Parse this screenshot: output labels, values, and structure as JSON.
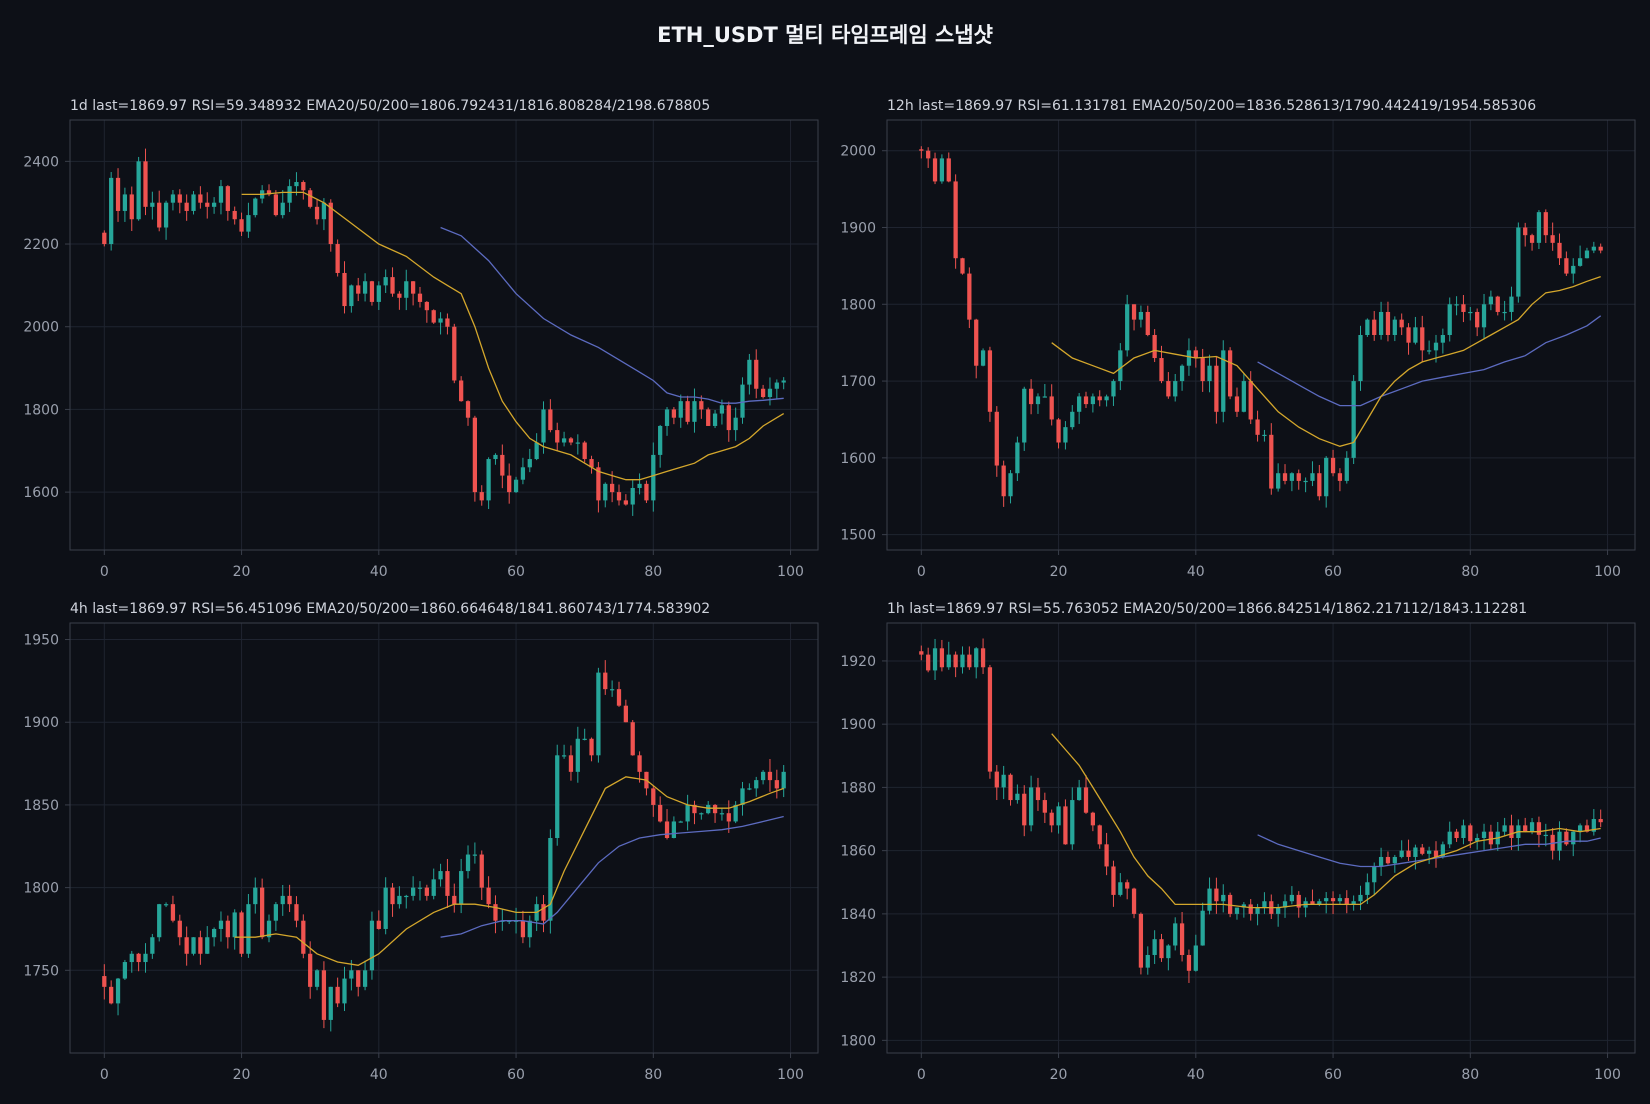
{
  "page": {
    "title": "ETH_USDT  멀티 타임프레임 스냅샷",
    "colors": {
      "background": "#0d1017",
      "frame": "#3a3f4b",
      "grid": "#1f2430",
      "tick_text": "#9aa0ad",
      "header_text": "#cfd3dc",
      "up": "#26a69a",
      "down": "#ef5350",
      "ema20": "#d4a72c",
      "ema50": "#5c6bc0"
    }
  },
  "chart_data": [
    {
      "type": "candlestick",
      "timeframe": "1d",
      "header": "1d  last=1869.97  RSI=59.348932  EMA20/50/200=1806.792431/1816.808284/2198.678805",
      "xlim": [
        -5,
        104
      ],
      "ylim": [
        1460,
        2500
      ],
      "xticks": [
        0,
        20,
        40,
        60,
        80,
        100
      ],
      "yticks": [
        1600,
        1800,
        2000,
        2200,
        2400
      ],
      "closes": [
        2200,
        2360,
        2280,
        2320,
        2260,
        2400,
        2290,
        2300,
        2240,
        2300,
        2320,
        2300,
        2280,
        2320,
        2300,
        2290,
        2300,
        2340,
        2280,
        2260,
        2230,
        2270,
        2310,
        2330,
        2320,
        2270,
        2300,
        2340,
        2350,
        2330,
        2290,
        2260,
        2300,
        2200,
        2130,
        2050,
        2100,
        2080,
        2110,
        2060,
        2100,
        2120,
        2080,
        2070,
        2110,
        2080,
        2060,
        2040,
        2010,
        2020,
        2000,
        1870,
        1820,
        1780,
        1600,
        1580,
        1680,
        1690,
        1640,
        1600,
        1630,
        1660,
        1680,
        1720,
        1800,
        1750,
        1720,
        1730,
        1720,
        1720,
        1680,
        1660,
        1580,
        1620,
        1600,
        1580,
        1570,
        1610,
        1620,
        1580,
        1690,
        1760,
        1800,
        1780,
        1820,
        1770,
        1820,
        1800,
        1760,
        1790,
        1810,
        1750,
        1780,
        1860,
        1920,
        1850,
        1830,
        1850,
        1865,
        1870
      ],
      "ema20": [
        [
          20,
          2320
        ],
        [
          23,
          2320
        ],
        [
          26,
          2325
        ],
        [
          29,
          2325
        ],
        [
          32,
          2300
        ],
        [
          36,
          2250
        ],
        [
          40,
          2200
        ],
        [
          44,
          2170
        ],
        [
          48,
          2120
        ],
        [
          50,
          2100
        ],
        [
          52,
          2080
        ],
        [
          54,
          2000
        ],
        [
          56,
          1900
        ],
        [
          58,
          1820
        ],
        [
          60,
          1770
        ],
        [
          62,
          1730
        ],
        [
          64,
          1710
        ],
        [
          66,
          1700
        ],
        [
          68,
          1690
        ],
        [
          70,
          1670
        ],
        [
          72,
          1650
        ],
        [
          74,
          1640
        ],
        [
          76,
          1630
        ],
        [
          78,
          1630
        ],
        [
          80,
          1640
        ],
        [
          82,
          1650
        ],
        [
          84,
          1660
        ],
        [
          86,
          1670
        ],
        [
          88,
          1690
        ],
        [
          90,
          1700
        ],
        [
          92,
          1710
        ],
        [
          94,
          1730
        ],
        [
          96,
          1760
        ],
        [
          98,
          1780
        ],
        [
          99,
          1790
        ]
      ],
      "ema50": [
        [
          49,
          2240
        ],
        [
          52,
          2220
        ],
        [
          56,
          2160
        ],
        [
          60,
          2080
        ],
        [
          64,
          2020
        ],
        [
          68,
          1980
        ],
        [
          72,
          1950
        ],
        [
          76,
          1910
        ],
        [
          78,
          1890
        ],
        [
          80,
          1870
        ],
        [
          82,
          1840
        ],
        [
          84,
          1830
        ],
        [
          86,
          1830
        ],
        [
          88,
          1825
        ],
        [
          90,
          1815
        ],
        [
          92,
          1815
        ],
        [
          94,
          1820
        ],
        [
          96,
          1822
        ],
        [
          99,
          1827
        ]
      ]
    },
    {
      "type": "candlestick",
      "timeframe": "12h",
      "header": "12h  last=1869.97  RSI=61.131781  EMA20/50/200=1836.528613/1790.442419/1954.585306",
      "xlim": [
        -5,
        104
      ],
      "ylim": [
        1480,
        2040
      ],
      "xticks": [
        0,
        20,
        40,
        60,
        80,
        100
      ],
      "yticks": [
        1500,
        1600,
        1700,
        1800,
        1900,
        2000
      ],
      "closes": [
        2000,
        1990,
        1960,
        1990,
        1960,
        1860,
        1840,
        1780,
        1720,
        1740,
        1660,
        1590,
        1550,
        1580,
        1620,
        1690,
        1670,
        1680,
        1680,
        1650,
        1620,
        1640,
        1660,
        1680,
        1670,
        1680,
        1675,
        1680,
        1700,
        1740,
        1800,
        1780,
        1790,
        1760,
        1730,
        1700,
        1680,
        1700,
        1720,
        1740,
        1730,
        1700,
        1720,
        1660,
        1740,
        1680,
        1660,
        1700,
        1650,
        1630,
        1630,
        1560,
        1580,
        1570,
        1580,
        1570,
        1570,
        1580,
        1550,
        1600,
        1580,
        1570,
        1600,
        1700,
        1760,
        1780,
        1760,
        1790,
        1760,
        1780,
        1770,
        1750,
        1770,
        1740,
        1740,
        1750,
        1760,
        1800,
        1800,
        1790,
        1790,
        1770,
        1800,
        1810,
        1790,
        1790,
        1810,
        1900,
        1890,
        1880,
        1920,
        1890,
        1880,
        1860,
        1840,
        1850,
        1860,
        1870,
        1875,
        1870
      ],
      "ema20": [
        [
          19,
          1750
        ],
        [
          22,
          1730
        ],
        [
          25,
          1720
        ],
        [
          28,
          1710
        ],
        [
          31,
          1730
        ],
        [
          34,
          1740
        ],
        [
          37,
          1735
        ],
        [
          40,
          1730
        ],
        [
          43,
          1732
        ],
        [
          46,
          1720
        ],
        [
          49,
          1690
        ],
        [
          52,
          1660
        ],
        [
          55,
          1640
        ],
        [
          58,
          1625
        ],
        [
          61,
          1615
        ],
        [
          63,
          1620
        ],
        [
          65,
          1650
        ],
        [
          67,
          1680
        ],
        [
          69,
          1700
        ],
        [
          71,
          1715
        ],
        [
          73,
          1725
        ],
        [
          75,
          1730
        ],
        [
          77,
          1735
        ],
        [
          79,
          1740
        ],
        [
          81,
          1750
        ],
        [
          83,
          1760
        ],
        [
          85,
          1770
        ],
        [
          87,
          1780
        ],
        [
          89,
          1800
        ],
        [
          91,
          1815
        ],
        [
          93,
          1818
        ],
        [
          95,
          1823
        ],
        [
          97,
          1830
        ],
        [
          99,
          1836
        ]
      ],
      "ema50": [
        [
          49,
          1725
        ],
        [
          52,
          1710
        ],
        [
          55,
          1695
        ],
        [
          58,
          1680
        ],
        [
          61,
          1668
        ],
        [
          64,
          1668
        ],
        [
          67,
          1680
        ],
        [
          70,
          1690
        ],
        [
          73,
          1700
        ],
        [
          76,
          1705
        ],
        [
          79,
          1710
        ],
        [
          82,
          1715
        ],
        [
          85,
          1725
        ],
        [
          88,
          1733
        ],
        [
          91,
          1750
        ],
        [
          94,
          1760
        ],
        [
          97,
          1772
        ],
        [
          99,
          1785
        ]
      ]
    },
    {
      "type": "candlestick",
      "timeframe": "4h",
      "header": "4h  last=1869.97  RSI=56.451096  EMA20/50/200=1860.664648/1841.860743/1774.583902",
      "xlim": [
        -5,
        104
      ],
      "ylim": [
        1700,
        1960
      ],
      "xticks": [
        0,
        20,
        40,
        60,
        80,
        100
      ],
      "yticks": [
        1750,
        1800,
        1850,
        1900,
        1950
      ],
      "closes": [
        1740,
        1730,
        1745,
        1755,
        1760,
        1755,
        1760,
        1770,
        1790,
        1790,
        1780,
        1770,
        1760,
        1770,
        1760,
        1770,
        1775,
        1780,
        1770,
        1785,
        1760,
        1790,
        1800,
        1770,
        1780,
        1790,
        1795,
        1790,
        1780,
        1760,
        1740,
        1750,
        1720,
        1740,
        1730,
        1745,
        1750,
        1740,
        1750,
        1780,
        1775,
        1800,
        1790,
        1795,
        1795,
        1800,
        1800,
        1795,
        1805,
        1810,
        1795,
        1790,
        1810,
        1820,
        1820,
        1800,
        1790,
        1780,
        1780,
        1780,
        1780,
        1770,
        1780,
        1790,
        1780,
        1830,
        1880,
        1880,
        1870,
        1890,
        1890,
        1880,
        1930,
        1920,
        1920,
        1910,
        1900,
        1880,
        1870,
        1860,
        1850,
        1840,
        1830,
        1840,
        1840,
        1850,
        1845,
        1845,
        1850,
        1845,
        1845,
        1840,
        1850,
        1860,
        1860,
        1865,
        1870,
        1865,
        1860,
        1870
      ],
      "ema20": [
        [
          19,
          1770
        ],
        [
          22,
          1770
        ],
        [
          25,
          1772
        ],
        [
          28,
          1770
        ],
        [
          31,
          1760
        ],
        [
          34,
          1755
        ],
        [
          37,
          1753
        ],
        [
          40,
          1760
        ],
        [
          44,
          1775
        ],
        [
          48,
          1785
        ],
        [
          51,
          1790
        ],
        [
          54,
          1790
        ],
        [
          57,
          1788
        ],
        [
          60,
          1785
        ],
        [
          63,
          1785
        ],
        [
          65,
          1790
        ],
        [
          67,
          1810
        ],
        [
          70,
          1835
        ],
        [
          73,
          1860
        ],
        [
          76,
          1867
        ],
        [
          79,
          1865
        ],
        [
          82,
          1855
        ],
        [
          85,
          1850
        ],
        [
          88,
          1848
        ],
        [
          91,
          1848
        ],
        [
          94,
          1852
        ],
        [
          97,
          1857
        ],
        [
          99,
          1860
        ]
      ],
      "ema50": [
        [
          49,
          1770
        ],
        [
          52,
          1772
        ],
        [
          55,
          1777
        ],
        [
          58,
          1780
        ],
        [
          61,
          1780
        ],
        [
          64,
          1778
        ],
        [
          66,
          1785
        ],
        [
          69,
          1800
        ],
        [
          72,
          1815
        ],
        [
          75,
          1825
        ],
        [
          78,
          1830
        ],
        [
          81,
          1832
        ],
        [
          84,
          1833
        ],
        [
          87,
          1834
        ],
        [
          90,
          1835
        ],
        [
          93,
          1837
        ],
        [
          96,
          1840
        ],
        [
          99,
          1843
        ]
      ]
    },
    {
      "type": "candlestick",
      "timeframe": "1h",
      "header": "1h  last=1869.97  RSI=55.763052  EMA20/50/200=1866.842514/1862.217112/1843.112281",
      "xlim": [
        -5,
        104
      ],
      "ylim": [
        1796,
        1932
      ],
      "xticks": [
        0,
        20,
        40,
        60,
        80,
        100
      ],
      "yticks": [
        1800,
        1820,
        1840,
        1860,
        1880,
        1900,
        1920
      ],
      "closes": [
        1922,
        1917,
        1924,
        1918,
        1922,
        1918,
        1922,
        1918,
        1924,
        1918,
        1885,
        1880,
        1884,
        1876,
        1878,
        1868,
        1880,
        1876,
        1872,
        1868,
        1874,
        1862,
        1876,
        1880,
        1872,
        1868,
        1862,
        1855,
        1846,
        1850,
        1848,
        1840,
        1823,
        1827,
        1832,
        1826,
        1830,
        1837,
        1827,
        1822,
        1830,
        1841,
        1848,
        1844,
        1846,
        1840,
        1842,
        1843,
        1840,
        1842,
        1844,
        1840,
        1842,
        1844,
        1846,
        1842,
        1844,
        1843,
        1844,
        1845,
        1844,
        1845,
        1843,
        1844,
        1846,
        1850,
        1855,
        1858,
        1856,
        1858,
        1860,
        1858,
        1861,
        1859,
        1860,
        1858,
        1862,
        1866,
        1864,
        1868,
        1863,
        1864,
        1866,
        1862,
        1866,
        1868,
        1864,
        1868,
        1866,
        1869,
        1865,
        1865,
        1860,
        1866,
        1862,
        1866,
        1868,
        1866,
        1870,
        1869
      ],
      "ema20": [
        [
          19,
          1897
        ],
        [
          21,
          1892
        ],
        [
          23,
          1887
        ],
        [
          25,
          1880
        ],
        [
          27,
          1873
        ],
        [
          29,
          1866
        ],
        [
          31,
          1858
        ],
        [
          33,
          1852
        ],
        [
          35,
          1848
        ],
        [
          37,
          1843
        ],
        [
          39,
          1843
        ],
        [
          41,
          1843
        ],
        [
          44,
          1843
        ],
        [
          48,
          1842
        ],
        [
          52,
          1842
        ],
        [
          56,
          1843
        ],
        [
          60,
          1843
        ],
        [
          64,
          1843
        ],
        [
          66,
          1846
        ],
        [
          69,
          1852
        ],
        [
          72,
          1856
        ],
        [
          75,
          1858
        ],
        [
          78,
          1860
        ],
        [
          81,
          1863
        ],
        [
          84,
          1864
        ],
        [
          87,
          1866
        ],
        [
          90,
          1866
        ],
        [
          93,
          1867
        ],
        [
          96,
          1866
        ],
        [
          99,
          1867
        ]
      ],
      "ema50": [
        [
          49,
          1865
        ],
        [
          52,
          1862
        ],
        [
          55,
          1860
        ],
        [
          58,
          1858
        ],
        [
          61,
          1856
        ],
        [
          64,
          1855
        ],
        [
          67,
          1855
        ],
        [
          70,
          1856
        ],
        [
          73,
          1857
        ],
        [
          76,
          1858
        ],
        [
          79,
          1859
        ],
        [
          82,
          1860
        ],
        [
          85,
          1861
        ],
        [
          88,
          1862
        ],
        [
          91,
          1862
        ],
        [
          94,
          1863
        ],
        [
          97,
          1863
        ],
        [
          99,
          1864
        ]
      ]
    }
  ]
}
